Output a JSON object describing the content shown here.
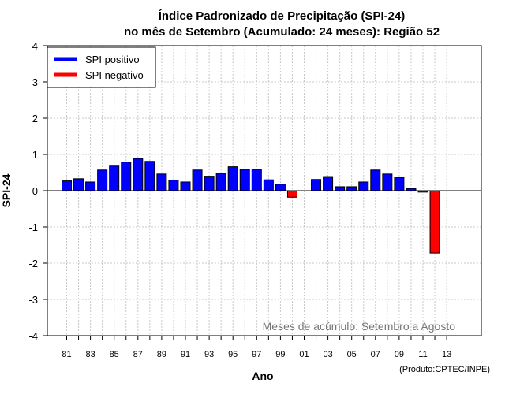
{
  "chart_data": {
    "type": "bar",
    "title": [
      "Índice Padronizado de Precipitação (SPI-24)",
      "no mês de Setembro (Acumulado: 24 meses): Região 52"
    ],
    "xlabel": "Ano",
    "ylabel": "SPI-24",
    "ylim": [
      -4,
      4
    ],
    "yticks": [
      "-4",
      "-3",
      "-2",
      "-1",
      "0",
      "1",
      "2",
      "3",
      "4"
    ],
    "xticks": [
      "81",
      "83",
      "85",
      "87",
      "89",
      "91",
      "93",
      "95",
      "97",
      "99",
      "01",
      "03",
      "05",
      "07",
      "09",
      "11",
      "13"
    ],
    "years": [
      1981,
      1982,
      1983,
      1984,
      1985,
      1986,
      1987,
      1988,
      1989,
      1990,
      1991,
      1992,
      1993,
      1994,
      1995,
      1996,
      1997,
      1998,
      1999,
      2000,
      2001,
      2002,
      2003,
      2004,
      2005,
      2006,
      2007,
      2008,
      2009,
      2010,
      2011,
      2012
    ],
    "values": [
      0.27,
      0.33,
      0.24,
      0.57,
      0.68,
      0.79,
      0.89,
      0.81,
      0.46,
      0.29,
      0.24,
      0.57,
      0.4,
      0.48,
      0.66,
      0.59,
      0.59,
      0.3,
      0.18,
      -0.18,
      0.0,
      0.31,
      0.39,
      0.11,
      0.11,
      0.24,
      0.57,
      0.46,
      0.37,
      0.06,
      -0.04,
      -1.72
    ],
    "positive_color": "#0000ff",
    "negative_color": "#ff0000",
    "legend": {
      "placement": "top-left",
      "entries": [
        {
          "label": "SPI positivo",
          "color": "#0000ff"
        },
        {
          "label": "SPI negativo",
          "color": "#ff0000"
        }
      ]
    },
    "annotation": "Meses de acúmulo: Setembro a Agosto",
    "credit": "(Produto:CPTEC/INPE)",
    "grid": true
  }
}
